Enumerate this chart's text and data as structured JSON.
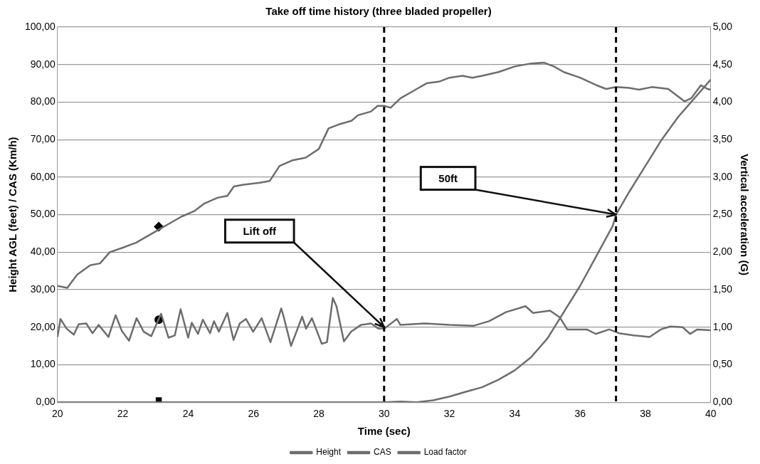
{
  "chart_data": {
    "type": "line",
    "title": "Take off time history (three bladed propeller)",
    "xlabel": "Time (sec)",
    "ylabel": "Height AGL (feet) / CAS (Km/h)",
    "y2label": "Vertical acceleration (G)",
    "xlim": [
      20,
      40
    ],
    "xticks": [
      20,
      22,
      24,
      26,
      28,
      30,
      32,
      34,
      36,
      38,
      40
    ],
    "ylim": [
      0,
      100
    ],
    "yticks": [
      {
        "value": 0,
        "label": "0,00"
      },
      {
        "value": 10,
        "label": "10,00"
      },
      {
        "value": 20,
        "label": "20,00"
      },
      {
        "value": 30,
        "label": "30,00"
      },
      {
        "value": 40,
        "label": "40,00"
      },
      {
        "value": 50,
        "label": "50,00"
      },
      {
        "value": 60,
        "label": "60,00"
      },
      {
        "value": 70,
        "label": "70,00"
      },
      {
        "value": 80,
        "label": "80,00"
      },
      {
        "value": 90,
        "label": "90,00"
      },
      {
        "value": 100,
        "label": "100,00"
      }
    ],
    "y2lim": [
      0,
      5
    ],
    "y2ticks": [
      {
        "value": 0,
        "label": "0,00"
      },
      {
        "value": 0.5,
        "label": "0,50"
      },
      {
        "value": 1,
        "label": "1,00"
      },
      {
        "value": 1.5,
        "label": "1,50"
      },
      {
        "value": 2,
        "label": "2,00"
      },
      {
        "value": 2.5,
        "label": "2,50"
      },
      {
        "value": 3,
        "label": "3,00"
      },
      {
        "value": 3.5,
        "label": "3,50"
      },
      {
        "value": 4,
        "label": "4,00"
      },
      {
        "value": 4.5,
        "label": "4,50"
      },
      {
        "value": 5,
        "label": "5,00"
      }
    ],
    "grid": "y",
    "legend": "bottom",
    "series": [
      {
        "name": "Height",
        "color": "#6d6d6d",
        "x": [
          20,
          30,
          30.5,
          31,
          31.5,
          32,
          32.5,
          33,
          33.5,
          34,
          34.5,
          35,
          35.5,
          36,
          36.5,
          37,
          37.1,
          37.5,
          38,
          38.5,
          39,
          39.5,
          40
        ],
        "values": [
          0,
          0,
          0.2,
          0,
          0.5,
          1.5,
          2.8,
          4,
          6,
          8.5,
          12,
          17,
          24,
          31,
          39,
          47,
          50,
          56,
          63,
          70,
          76,
          81,
          86
        ]
      },
      {
        "name": "CAS",
        "color": "#6d6d6d",
        "x": [
          20,
          20.3,
          20.6,
          21,
          21.3,
          21.6,
          22,
          22.4,
          22.8,
          23.1,
          23.4,
          23.8,
          24.2,
          24.5,
          24.9,
          25.2,
          25.4,
          25.7,
          26.2,
          26.5,
          26.8,
          27.2,
          27.6,
          28,
          28.3,
          28.6,
          29,
          29.2,
          29.6,
          29.8,
          30,
          30.2,
          30.5,
          30.8,
          31,
          31.3,
          31.7,
          32,
          32.4,
          32.7,
          33,
          33.5,
          34,
          34.5,
          34.9,
          35.2,
          35.5,
          36,
          36.5,
          36.8,
          37.1,
          37.5,
          37.8,
          38.2,
          38.7,
          39,
          39.2,
          39.4,
          39.7,
          39.9,
          40
        ],
        "values": [
          31,
          30.5,
          34,
          36.5,
          37,
          40,
          41.2,
          42.5,
          44.5,
          46,
          47.5,
          49.5,
          51,
          53,
          54.5,
          55,
          57.5,
          58,
          58.5,
          59,
          63,
          64.5,
          65.2,
          67.5,
          73,
          74,
          75,
          76.5,
          77.5,
          79,
          79,
          78.5,
          81,
          82.5,
          83.5,
          85,
          85.5,
          86.5,
          87,
          86.5,
          87,
          88,
          89.5,
          90.3,
          90.5,
          89.5,
          88,
          86.5,
          84.5,
          83.5,
          84,
          83.8,
          83.3,
          84,
          83.5,
          81.5,
          80.2,
          81,
          84.5,
          83.5,
          83.3
        ]
      },
      {
        "name": "Load factor",
        "color": "#6d6d6d",
        "axis": "y2",
        "x": [
          20,
          20.09,
          20.28,
          20.5,
          20.65,
          20.88,
          21.07,
          21.26,
          21.56,
          21.78,
          21.97,
          22.19,
          22.42,
          22.64,
          22.87,
          23.17,
          23.4,
          23.59,
          23.77,
          24.0,
          24.11,
          24.3,
          24.45,
          24.67,
          24.79,
          24.94,
          25.2,
          25.39,
          25.58,
          25.77,
          25.99,
          26.25,
          26.52,
          26.85,
          26.93,
          27.15,
          27.49,
          27.61,
          27.79,
          28.09,
          28.25,
          28.43,
          28.54,
          28.77,
          28.99,
          29.29,
          29.6,
          29.83,
          30.0,
          30.39,
          30.5,
          31.25,
          32.0,
          32.75,
          33.21,
          33.73,
          34.33,
          34.56,
          35.08,
          35.38,
          35.61,
          36.21,
          36.48,
          36.89,
          37.19,
          37.64,
          38.13,
          38.47,
          38.77,
          39.14,
          39.37,
          39.59,
          40.0
        ],
        "values": [
          0.87,
          1.11,
          0.98,
          0.9,
          1.04,
          1.05,
          0.92,
          1.03,
          0.87,
          1.16,
          0.95,
          0.82,
          1.12,
          0.94,
          0.88,
          1.18,
          0.86,
          0.89,
          1.24,
          0.86,
          1.06,
          0.91,
          1.1,
          0.92,
          1.08,
          0.94,
          1.19,
          0.83,
          1.05,
          1.11,
          0.94,
          1.12,
          0.8,
          1.25,
          1.13,
          0.75,
          1.14,
          0.98,
          1.12,
          0.78,
          0.8,
          1.39,
          1.28,
          0.81,
          0.94,
          1.03,
          1.05,
          0.98,
          0.98,
          1.11,
          1.03,
          1.05,
          1.03,
          1.02,
          1.08,
          1.2,
          1.28,
          1.19,
          1.22,
          1.13,
          0.97,
          0.97,
          0.91,
          0.97,
          0.92,
          0.89,
          0.87,
          0.97,
          1.01,
          1.0,
          0.91,
          0.97,
          0.96
        ]
      },
      {
        "type": "scatter",
        "color": "#000000",
        "marker": "square",
        "x": [
          23.1
        ],
        "values": [
          0.5
        ]
      },
      {
        "type": "scatter",
        "color": "#000000",
        "marker": "diamond",
        "x": [
          23.1
        ],
        "values": [
          46.8
        ]
      },
      {
        "type": "scatter",
        "color": "#000000",
        "marker": "circle",
        "axis": "y2",
        "x": [
          23.1
        ],
        "values": [
          1.1
        ]
      }
    ],
    "ref_lines": [
      {
        "axis": "x",
        "value": 30,
        "color": "#000000",
        "line_style": "dashed"
      },
      {
        "axis": "x",
        "value": 37.1,
        "color": "#000000",
        "line_style": "dashed"
      }
    ],
    "annotations": [
      "Lift off",
      "50ft"
    ]
  }
}
